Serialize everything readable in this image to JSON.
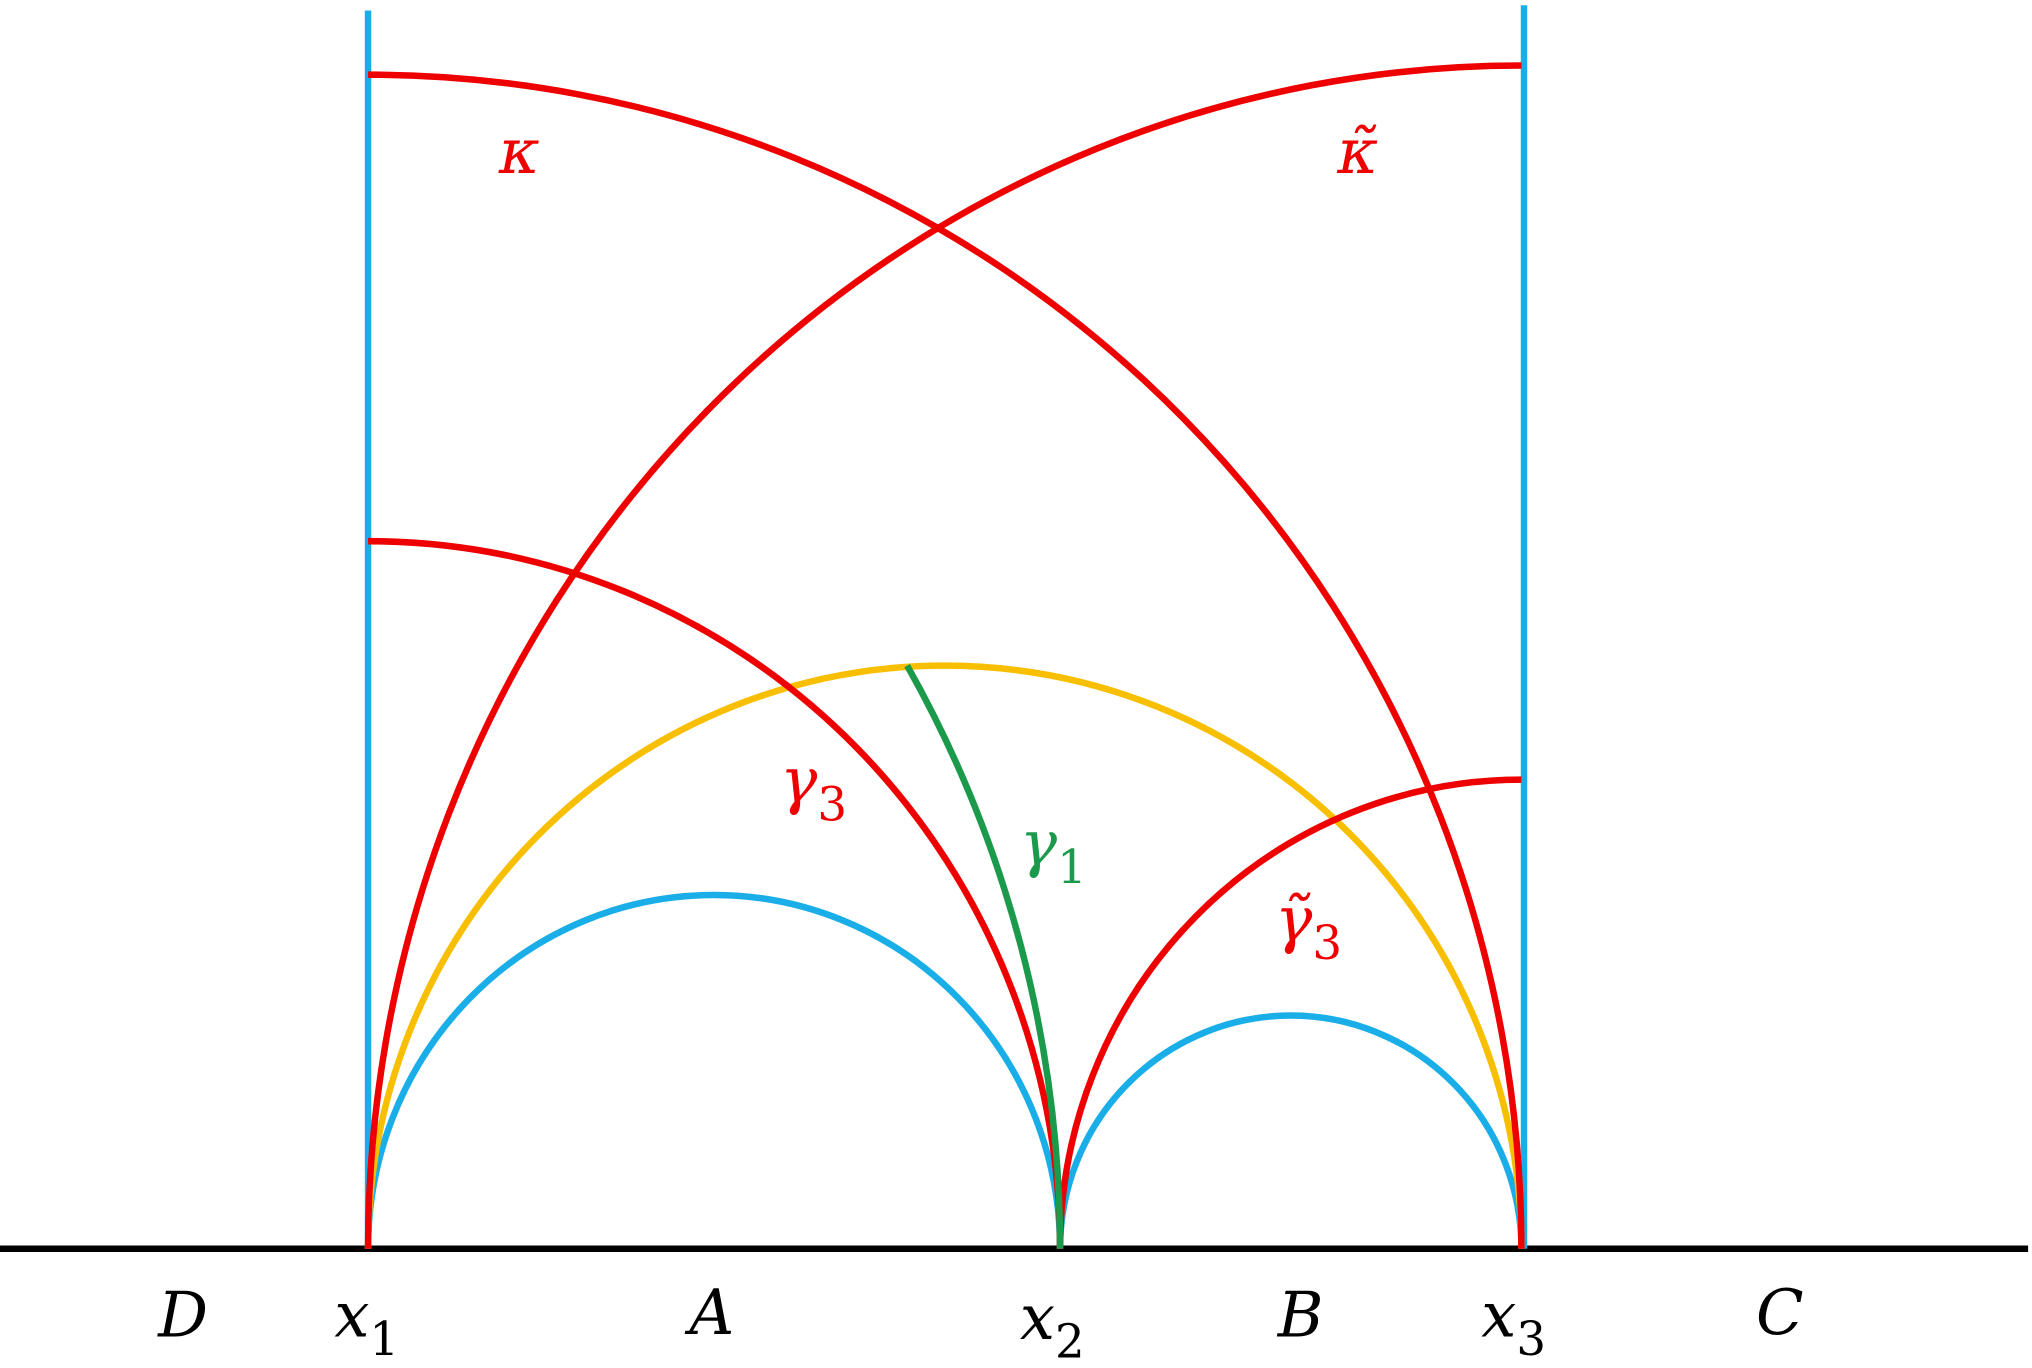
{
  "labels": [
    {
      "text": "κ"
    },
    {
      "text": "κ̃"
    },
    {
      "text": "γ",
      "sub": "3"
    },
    {
      "text": "γ",
      "sub": "1"
    },
    {
      "text": "γ̃",
      "sub": "3"
    },
    {
      "text": "D"
    },
    {
      "text": "x",
      "sub": "1"
    },
    {
      "text": "A"
    },
    {
      "text": "x",
      "sub": "2"
    },
    {
      "text": "B"
    },
    {
      "text": "x",
      "sub": "3"
    },
    {
      "text": "C"
    }
  ]
}
